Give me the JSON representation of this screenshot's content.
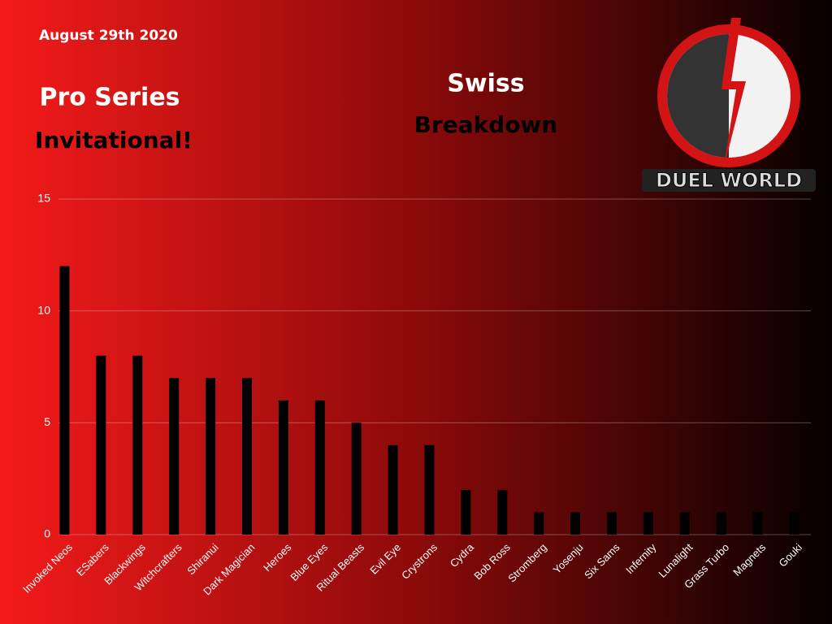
{
  "chart_data": {
    "type": "bar",
    "title": "Swiss",
    "subtitle": "Breakdown",
    "annotations": [
      "August 29th 2020",
      "Pro Series",
      "Invitational!",
      "DUEL WORLD"
    ],
    "categories": [
      "Invoked Neos",
      "ESabers",
      "Blackwings",
      "Witchcrafters",
      "Shiranui",
      "Dark Magician",
      "Heroes",
      "Blue Eyes",
      "Ritual Beasts",
      "Evil Eye",
      "Crystrons",
      "Cydra",
      "Bob Ross",
      "Stromberg",
      "Yosenju",
      "Six Sams",
      "Infernity",
      "Lunalight",
      "Grass Turbo",
      "Magnets",
      "Gouki"
    ],
    "values": [
      12,
      8,
      8,
      7,
      7,
      7,
      6,
      6,
      5,
      4,
      4,
      2,
      2,
      1,
      1,
      1,
      1,
      1,
      1,
      1,
      1
    ],
    "color": "#000000",
    "ylim": [
      0,
      15
    ],
    "yticks": [
      0,
      5,
      10,
      15
    ],
    "grid": true
  }
}
